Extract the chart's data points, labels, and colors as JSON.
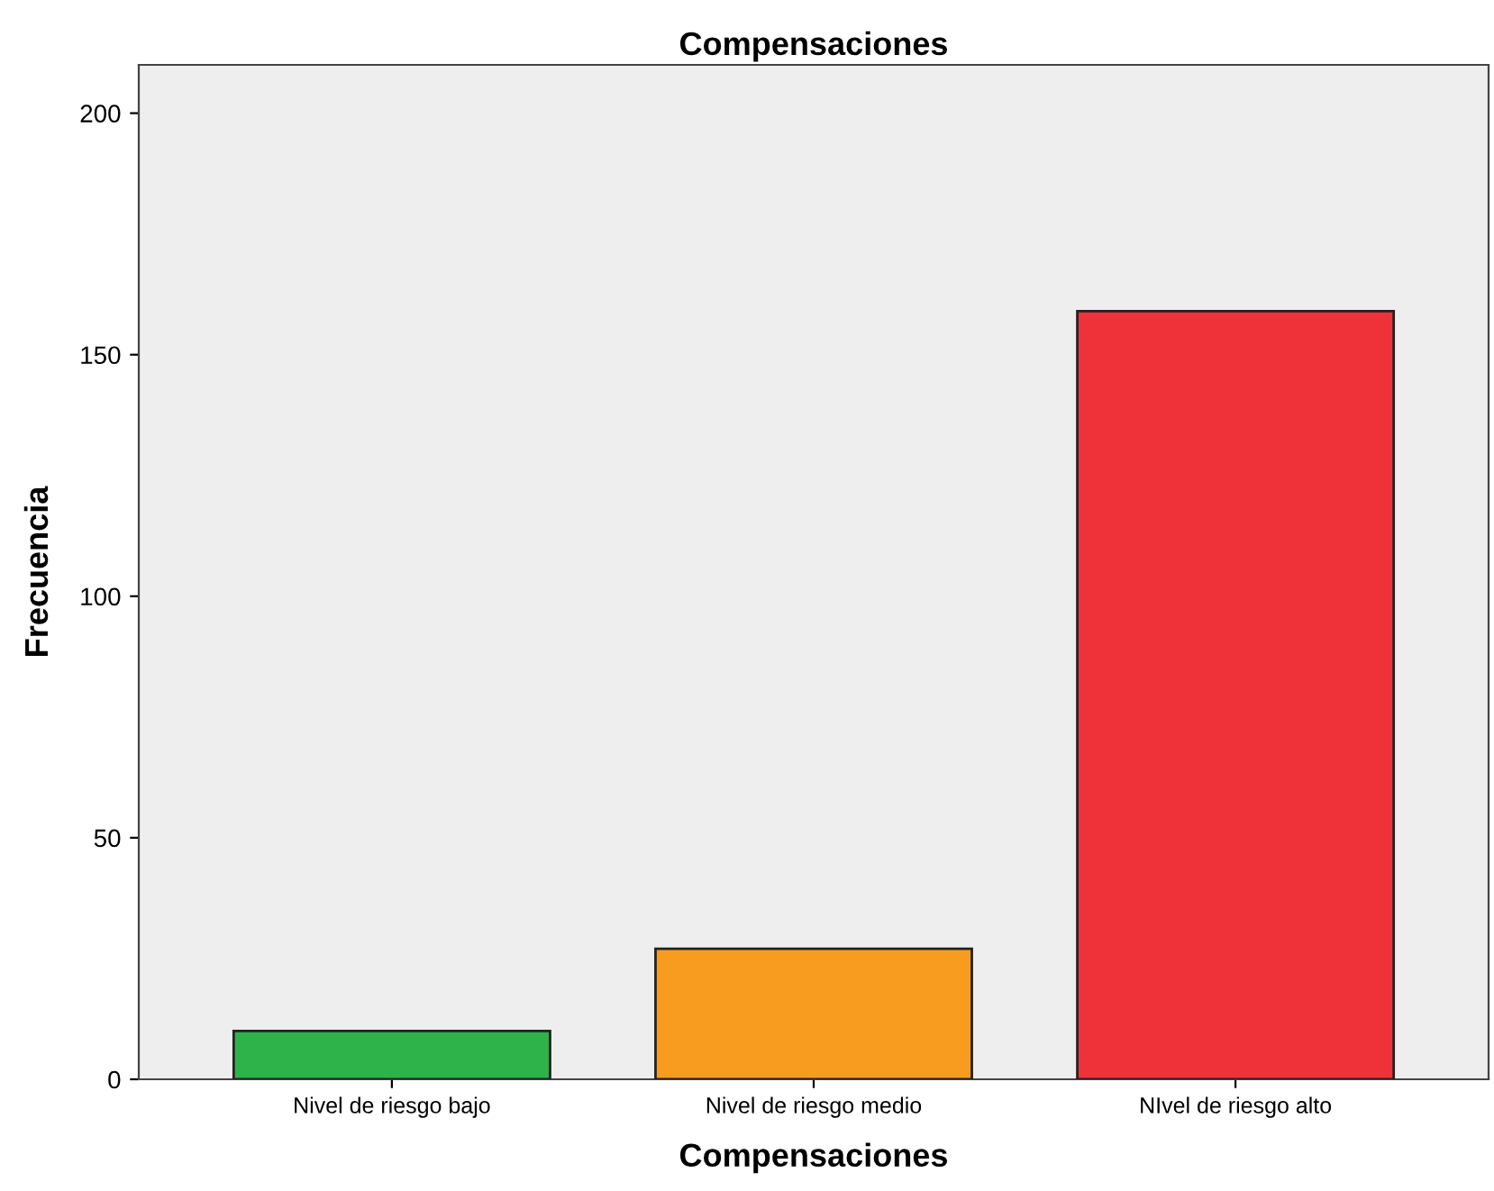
{
  "chart_data": {
    "type": "bar",
    "title": "Compensaciones",
    "xlabel": "Compensaciones",
    "ylabel": "Frecuencia",
    "categories": [
      "Nivel de riesgo bajo",
      "Nivel de riesgo medio",
      "NIvel de riesgo alto"
    ],
    "values": [
      10,
      27,
      159
    ],
    "colors": [
      "#2db34a",
      "#f89c20",
      "#ef323a"
    ],
    "ylim": [
      0,
      210
    ],
    "yticks": [
      0,
      50,
      100,
      150,
      200
    ],
    "grid": false,
    "legend": false
  }
}
